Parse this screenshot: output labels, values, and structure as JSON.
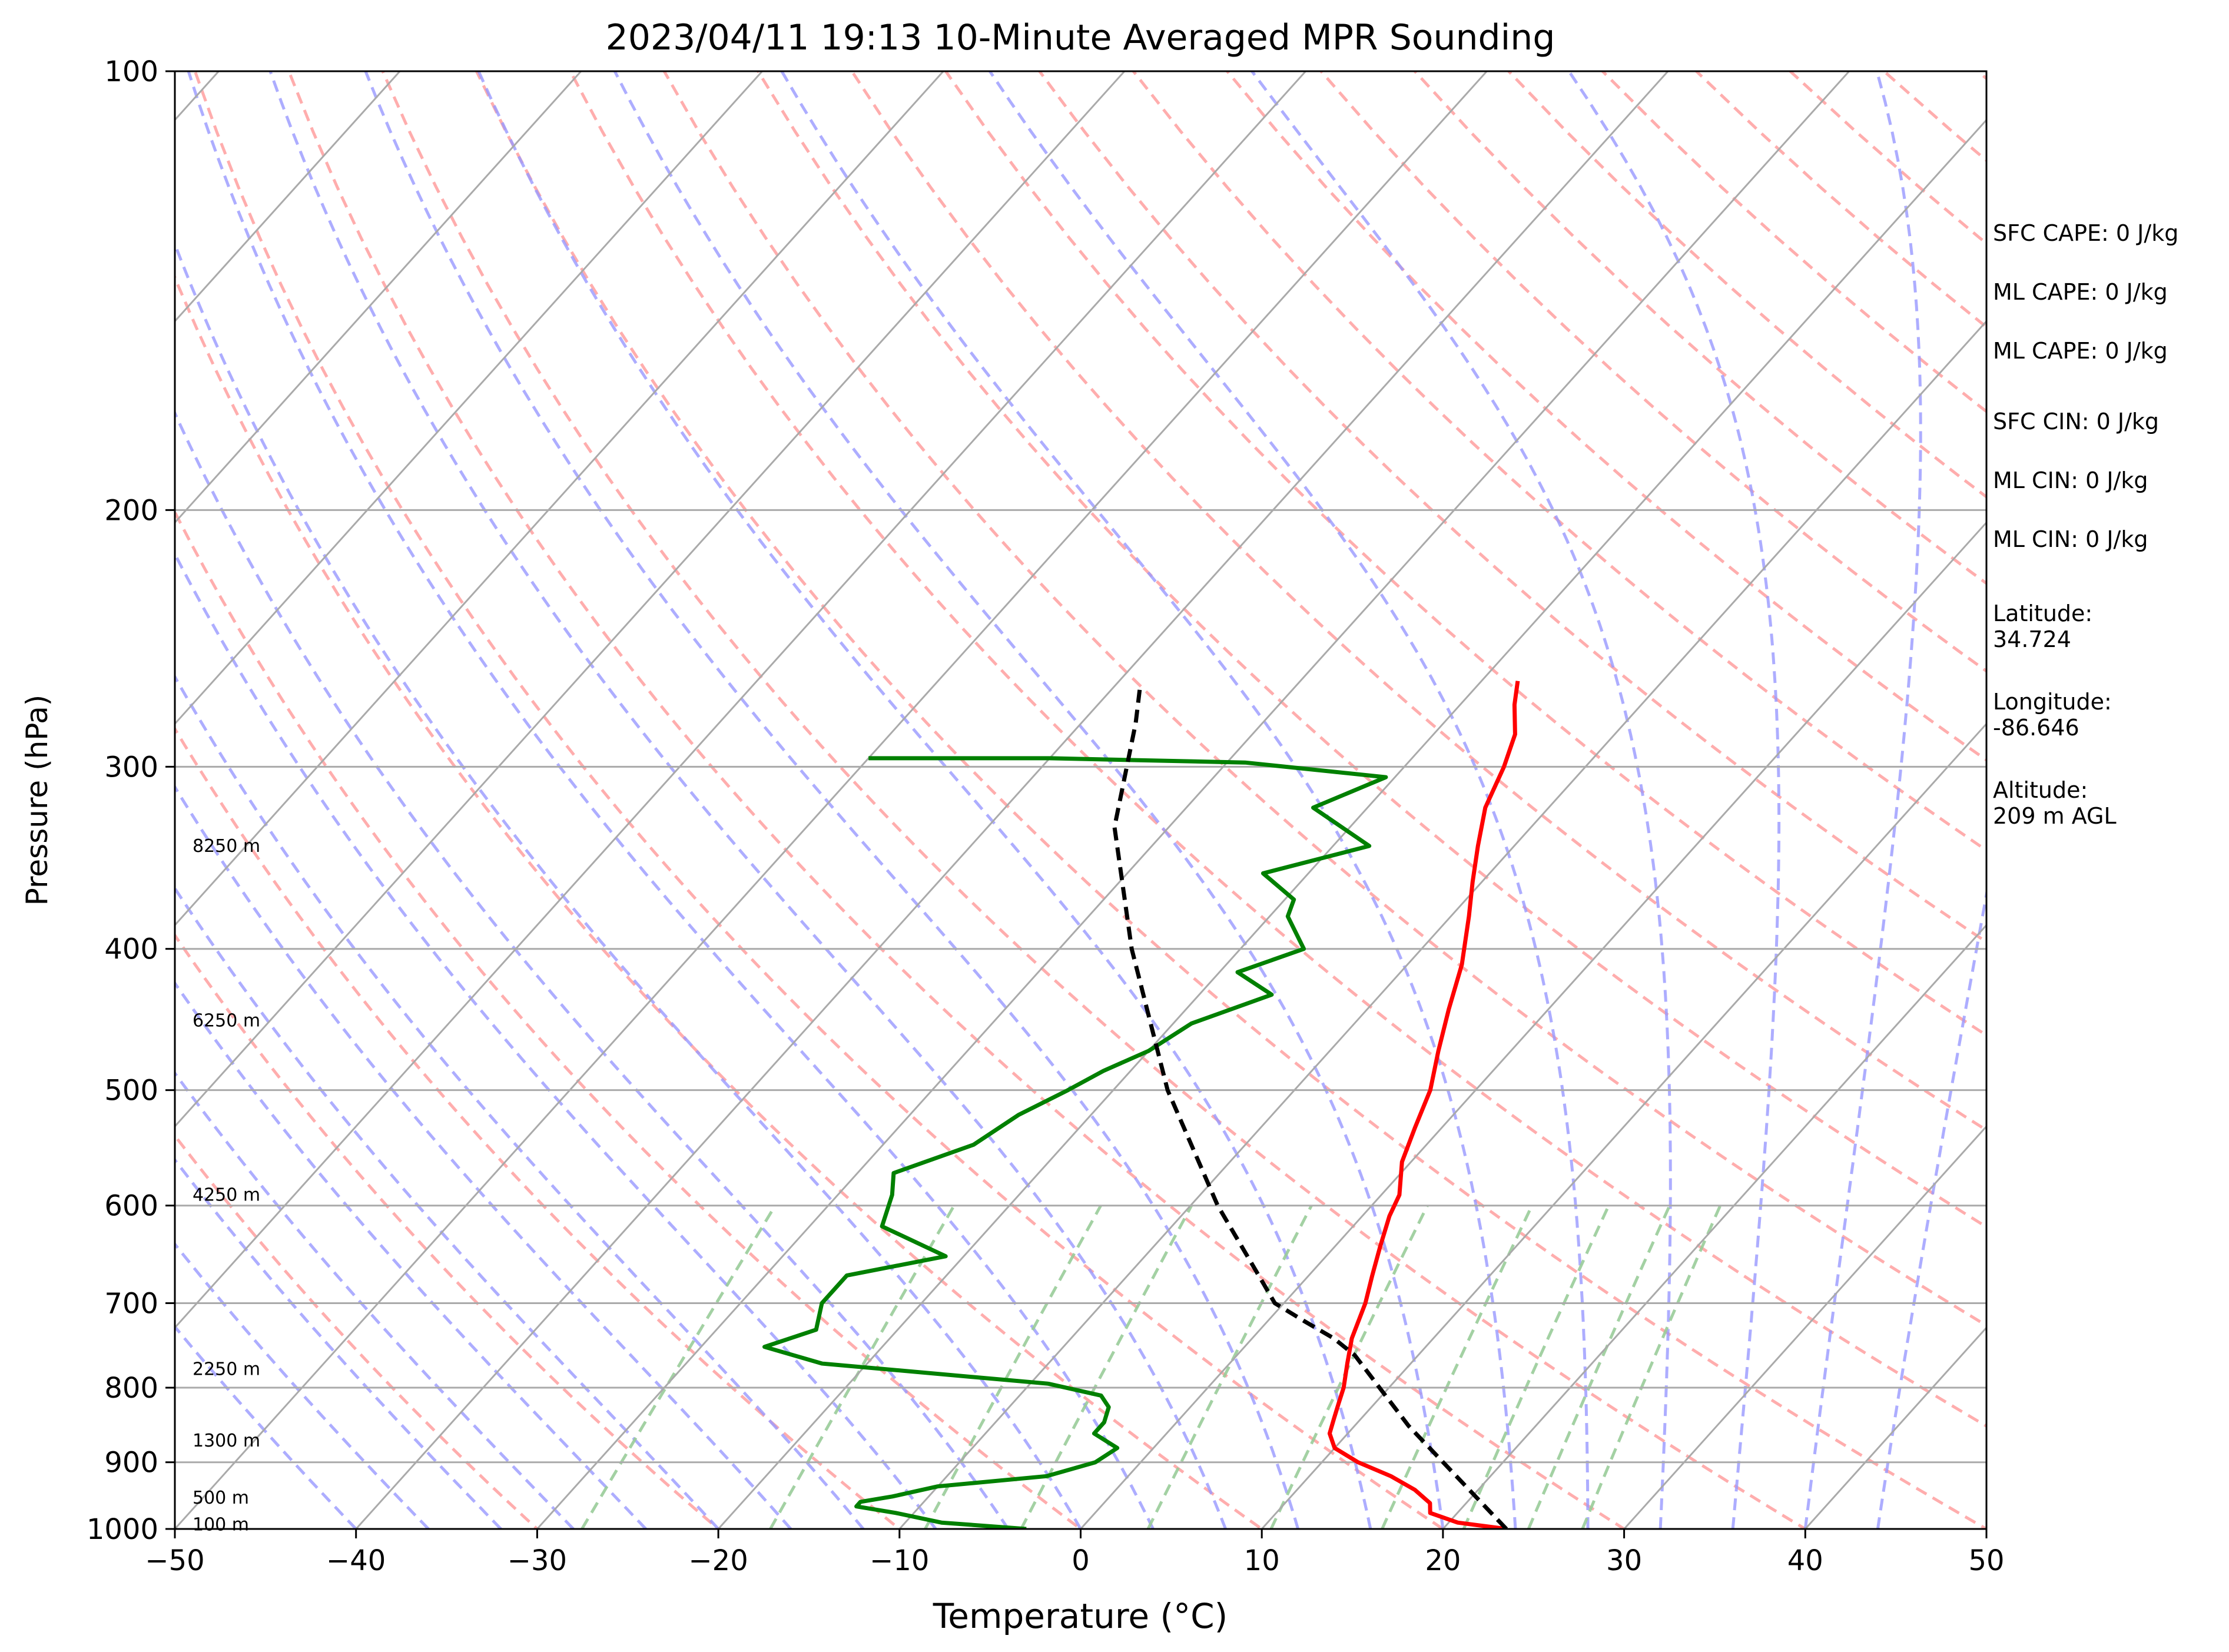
{
  "chart_data": {
    "type": "line",
    "subtype": "skew-T log-P sounding",
    "title": "2023/04/11 19:13 10-Minute Averaged MPR Sounding",
    "xlabel": "Temperature (°C)",
    "ylabel": "Pressure (hPa)",
    "xlim": [
      -50,
      50
    ],
    "ylim": [
      1000,
      100
    ],
    "y_scale": "log",
    "grid": true,
    "x_ticks": [
      "−50",
      "−40",
      "−30",
      "−20",
      "−10",
      "0",
      "10",
      "20",
      "30",
      "40",
      "50"
    ],
    "y_ticks": [
      "100",
      "200",
      "300",
      "400",
      "500",
      "600",
      "700",
      "800",
      "900",
      "1000"
    ],
    "height_labels": [
      {
        "text": "100 m",
        "p": 993
      },
      {
        "text": "500 m",
        "p": 952
      },
      {
        "text": "1300 m",
        "p": 870
      },
      {
        "text": "2250 m",
        "p": 777
      },
      {
        "text": "4250 m",
        "p": 590
      },
      {
        "text": "6250 m",
        "p": 448
      },
      {
        "text": "8250 m",
        "p": 340
      }
    ],
    "series": [
      {
        "key": "temperature",
        "color": "#ff0000",
        "points": [
          [
            1000,
            23.5
          ],
          [
            990,
            20.5
          ],
          [
            975,
            18.5
          ],
          [
            960,
            18.0
          ],
          [
            940,
            16.5
          ],
          [
            920,
            14.5
          ],
          [
            900,
            12.0
          ],
          [
            880,
            10.0
          ],
          [
            860,
            9.0
          ],
          [
            840,
            8.5
          ],
          [
            820,
            8.0
          ],
          [
            800,
            7.5
          ],
          [
            770,
            6.5
          ],
          [
            740,
            5.5
          ],
          [
            700,
            4.5
          ],
          [
            670,
            3.5
          ],
          [
            640,
            2.5
          ],
          [
            610,
            1.5
          ],
          [
            590,
            1.0
          ],
          [
            560,
            -0.5
          ],
          [
            530,
            -1.5
          ],
          [
            500,
            -2.5
          ],
          [
            470,
            -4.0
          ],
          [
            440,
            -5.5
          ],
          [
            410,
            -7.0
          ],
          [
            380,
            -9.0
          ],
          [
            360,
            -10.5
          ],
          [
            340,
            -12.0
          ],
          [
            320,
            -13.5
          ],
          [
            300,
            -14.5
          ],
          [
            285,
            -15.5
          ],
          [
            272,
            -17.0
          ],
          [
            262,
            -18.0
          ]
        ]
      },
      {
        "key": "dewpoint",
        "color": "#008000",
        "points": [
          [
            1000,
            -3.0
          ],
          [
            990,
            -8.0
          ],
          [
            975,
            -11.0
          ],
          [
            965,
            -13.5
          ],
          [
            958,
            -13.5
          ],
          [
            950,
            -12.0
          ],
          [
            935,
            -10.0
          ],
          [
            920,
            -4.5
          ],
          [
            900,
            -2.5
          ],
          [
            880,
            -2.0
          ],
          [
            860,
            -4.0
          ],
          [
            845,
            -4.0
          ],
          [
            825,
            -4.5
          ],
          [
            810,
            -5.5
          ],
          [
            795,
            -9.0
          ],
          [
            770,
            -22.5
          ],
          [
            750,
            -26.5
          ],
          [
            730,
            -24.5
          ],
          [
            700,
            -25.5
          ],
          [
            670,
            -25.5
          ],
          [
            650,
            -21.0
          ],
          [
            620,
            -26.0
          ],
          [
            590,
            -27.0
          ],
          [
            570,
            -28.0
          ],
          [
            545,
            -25.0
          ],
          [
            520,
            -24.0
          ],
          [
            500,
            -22.5
          ],
          [
            485,
            -21.5
          ],
          [
            470,
            -20.0
          ],
          [
            450,
            -19.0
          ],
          [
            430,
            -16.0
          ],
          [
            415,
            -19.0
          ],
          [
            400,
            -16.5
          ],
          [
            380,
            -19.0
          ],
          [
            370,
            -19.5
          ],
          [
            355,
            -22.5
          ],
          [
            340,
            -18.0
          ],
          [
            320,
            -23.0
          ],
          [
            305,
            -20.5
          ],
          [
            298,
            -29.0
          ],
          [
            296,
            -40.0
          ],
          [
            296,
            -50.0
          ]
        ]
      },
      {
        "key": "parcel",
        "color": "#000000",
        "points": [
          [
            1000,
            23.5
          ],
          [
            850,
            13.0
          ],
          [
            760,
            6.5
          ],
          [
            740,
            4.5
          ],
          [
            720,
            2.0
          ],
          [
            700,
            -0.5
          ],
          [
            680,
            -2.0
          ],
          [
            600,
            -8.5
          ],
          [
            500,
            -17.0
          ],
          [
            400,
            -26.0
          ],
          [
            330,
            -33.0
          ],
          [
            280,
            -37.0
          ],
          [
            265,
            -38.5
          ]
        ]
      }
    ]
  },
  "indices": {
    "sfc_cape": "SFC CAPE: 0 J/kg",
    "ml_cape_1": "ML CAPE: 0 J/kg",
    "ml_cape_2": "ML CAPE: 0 J/kg",
    "sfc_cin": "SFC CIN: 0 J/kg",
    "ml_cin_1": "ML CIN: 0 J/kg",
    "ml_cin_2": "ML CIN: 0 J/kg",
    "latitude": "Latitude:\n34.724",
    "longitude": "Longitude:\n-86.646",
    "altitude": "Altitude:\n209 m AGL"
  },
  "colors": {
    "isotherm": "#aaaaaa",
    "dry_adiabat": "#ff9999",
    "moist_adiabat": "#9999ff",
    "mixing_ratio": "#99cc99"
  }
}
